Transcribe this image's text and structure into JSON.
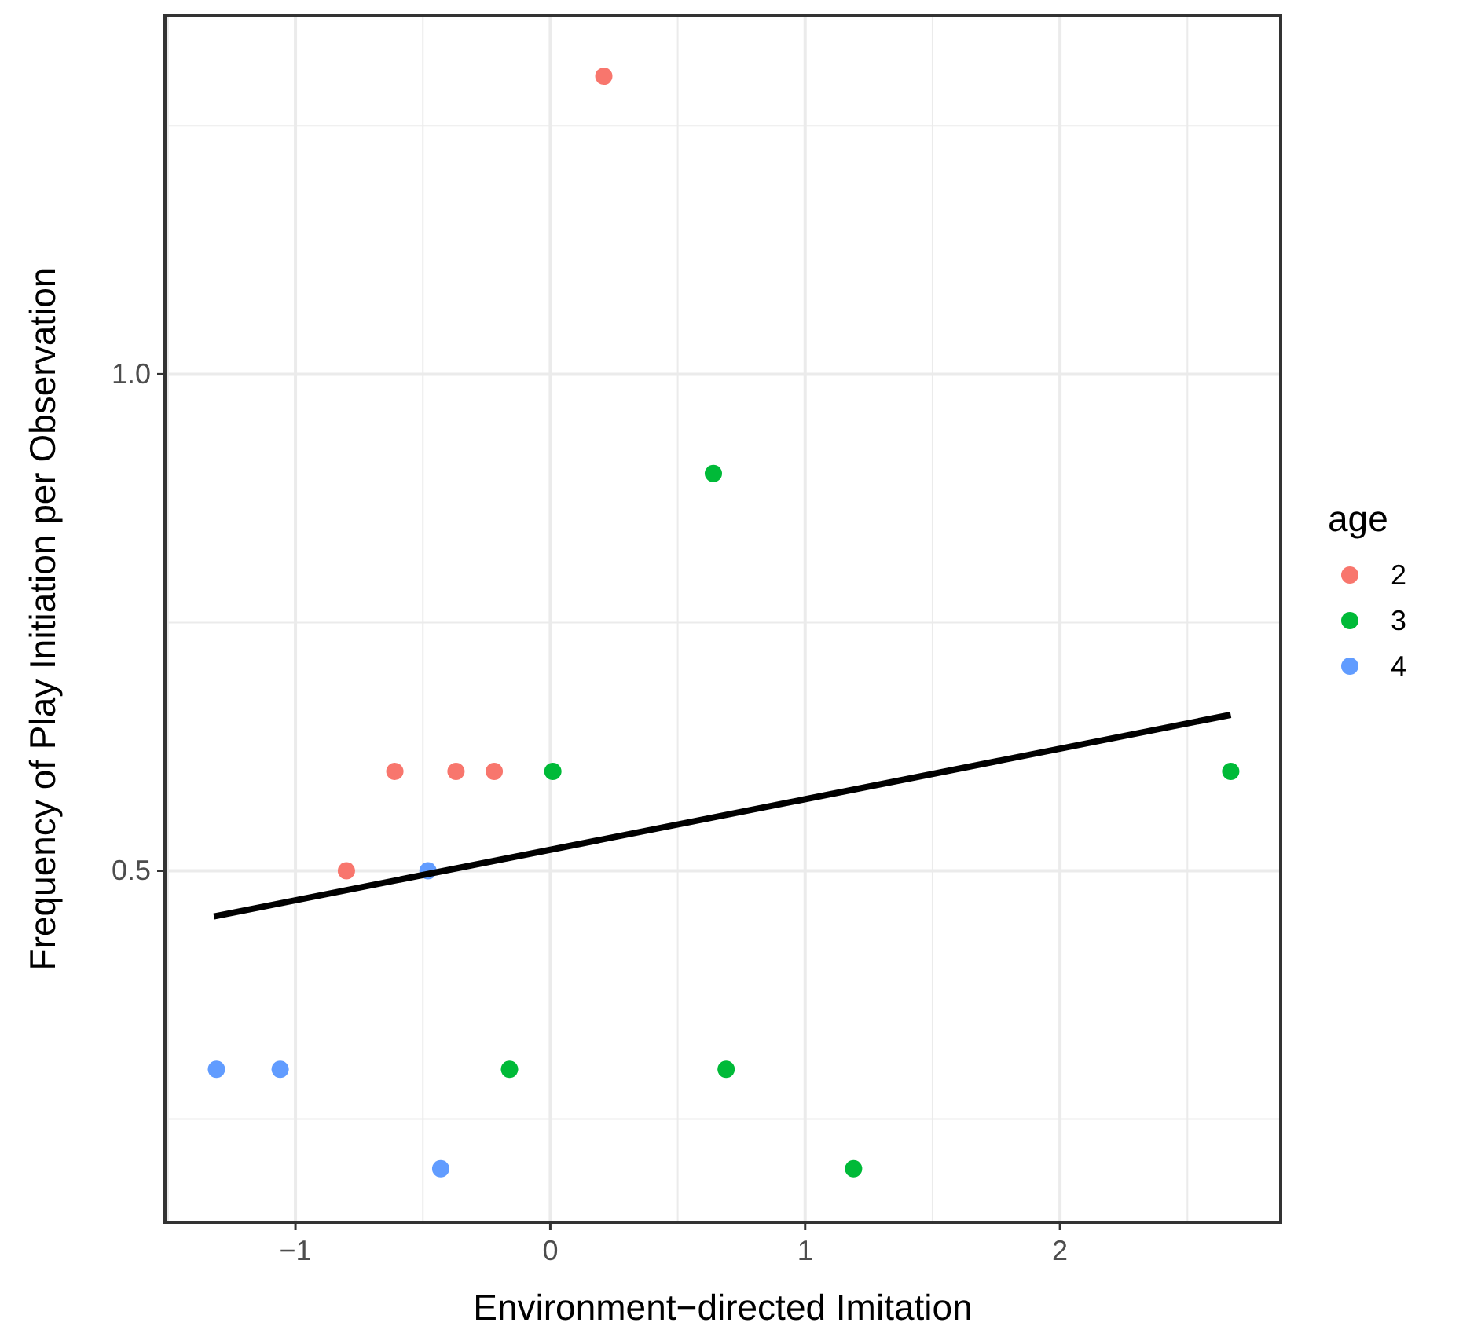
{
  "chart_data": {
    "type": "scatter",
    "xlabel": "Environment−directed Imitation",
    "ylabel": "Frequency of Play Initiation per Observation",
    "legend_title": "age",
    "legend": "right",
    "grid": true,
    "xlim": [
      -1.512,
      2.866
    ],
    "xticks": [
      {
        "value": -1.5,
        "label": null
      },
      {
        "value": -1,
        "label": "−1"
      },
      {
        "value": -0.5,
        "label": null
      },
      0,
      {
        "value": 0.5,
        "label": null
      },
      1,
      {
        "value": 1.5,
        "label": null
      },
      2,
      {
        "value": 2.5,
        "label": null
      }
    ],
    "ylim": [
      0.146,
      1.361
    ],
    "yticks": [
      {
        "value": 0.25,
        "label": null
      },
      {
        "value": 0.5,
        "label": "0.5"
      },
      {
        "value": 0.75,
        "label": null
      },
      {
        "value": 1,
        "label": "1.0"
      },
      {
        "value": 1.25,
        "label": null
      }
    ],
    "series": [
      {
        "name": "2",
        "color": "#f8766d",
        "marker": "circle",
        "x": [
          0.21,
          -0.61,
          -0.37,
          -0.22,
          -0.8
        ],
        "values": [
          1.3,
          0.6,
          0.6,
          0.6,
          0.5
        ]
      },
      {
        "name": "3",
        "color": "#00ba38",
        "marker": "circle",
        "x": [
          0.64,
          0.01,
          2.67,
          -0.16,
          0.69,
          1.19
        ],
        "values": [
          0.9,
          0.6,
          0.6,
          0.3,
          0.3,
          0.2
        ]
      },
      {
        "name": "4",
        "color": "#619cff",
        "marker": "circle",
        "x": [
          -1.31,
          -1.06,
          -0.48,
          -0.43
        ],
        "values": [
          0.3,
          0.3,
          0.5,
          0.2
        ]
      },
      {
        "type": "line",
        "color": "#000000",
        "x": [
          -1.32,
          2.67
        ],
        "values": [
          0.454,
          0.657
        ]
      }
    ]
  }
}
